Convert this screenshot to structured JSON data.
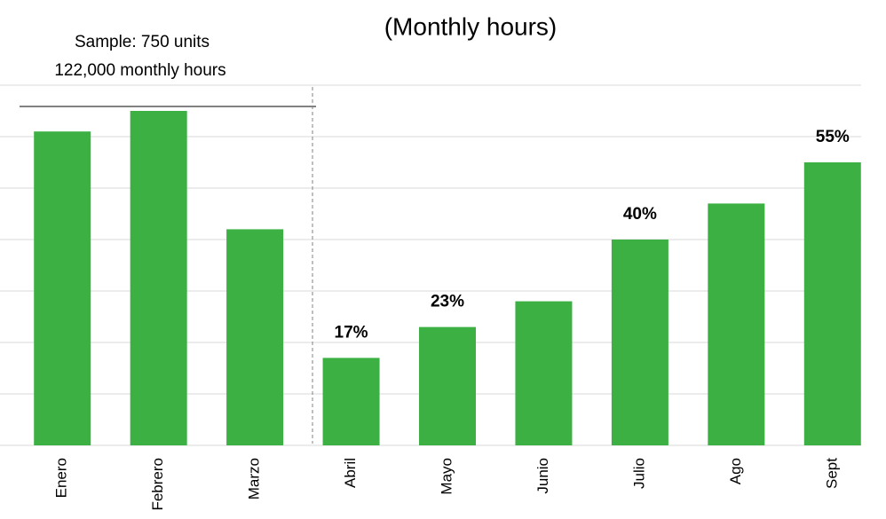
{
  "chart_data": {
    "type": "bar",
    "title": "(Monthly hours)",
    "annotations": [
      "Sample: 750 units",
      "122,000 monthly hours"
    ],
    "categories": [
      "Enero",
      "Febrero",
      "Marzo",
      "Abril",
      "Mayo",
      "Junio",
      "Julio",
      "Ago",
      "Sept"
    ],
    "values": [
      61,
      65,
      42,
      17,
      23,
      28,
      40,
      47,
      55
    ],
    "value_labels": [
      null,
      null,
      null,
      "17%",
      "23%",
      null,
      "40%",
      null,
      "55%"
    ],
    "color": "#3cb043",
    "ylim": [
      0,
      70
    ],
    "yticks": [
      0,
      10,
      20,
      30,
      40,
      50,
      60,
      70
    ],
    "grid": true
  }
}
